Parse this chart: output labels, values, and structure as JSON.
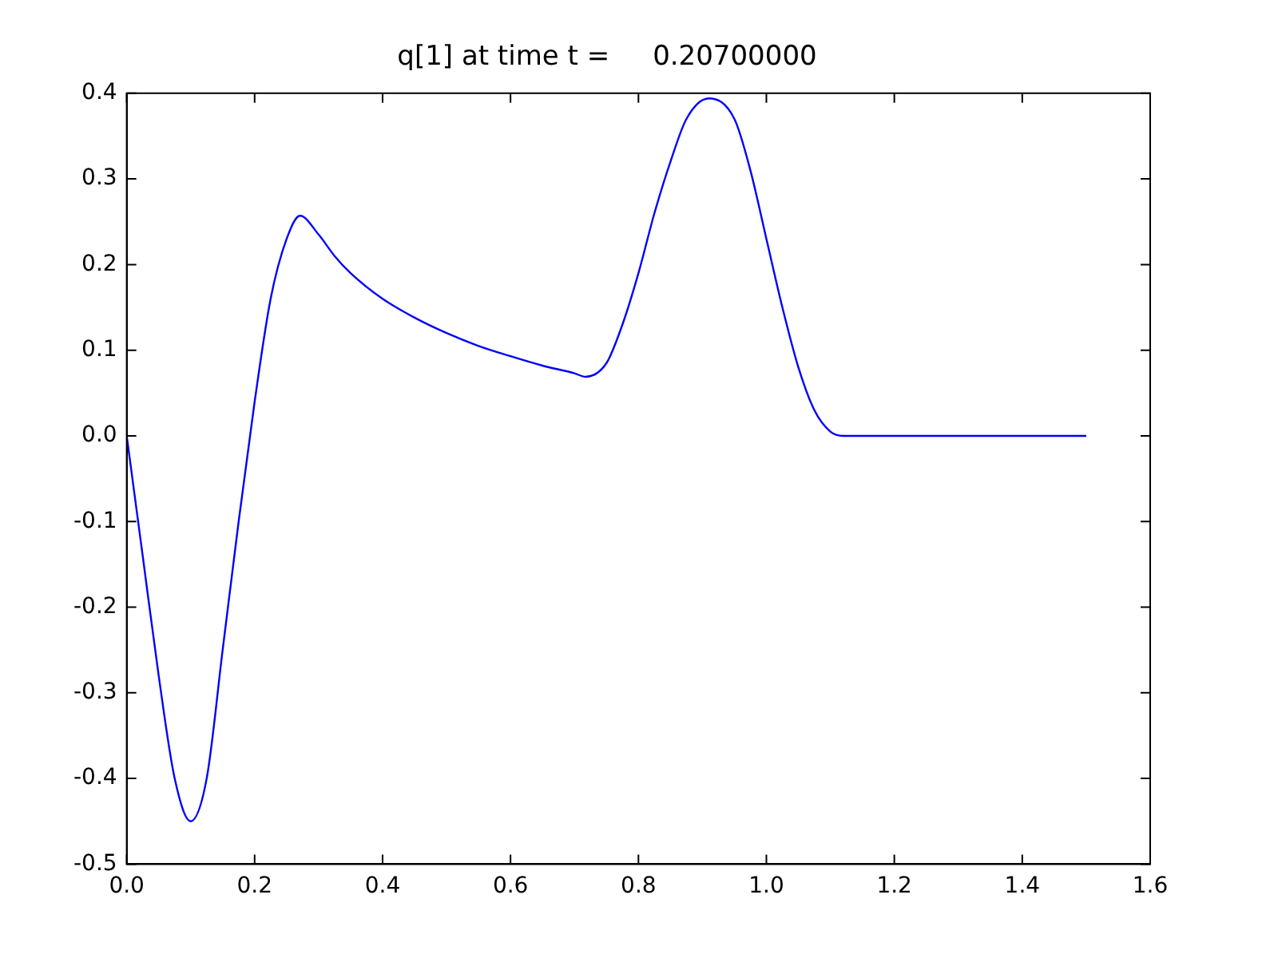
{
  "chart_data": {
    "type": "line",
    "title": "q[1] at time t =     0.20700000",
    "x": [
      0,
      0.025,
      0.05,
      0.075,
      0.1,
      0.125,
      0.15,
      0.175,
      0.2,
      0.225,
      0.25,
      0.271,
      0.3,
      0.325,
      0.35,
      0.4,
      0.45,
      0.5,
      0.55,
      0.6,
      0.65,
      0.7,
      0.717,
      0.75,
      0.775,
      0.8,
      0.825,
      0.85,
      0.875,
      0.91,
      0.95,
      0.975,
      1.0,
      1.025,
      1.05,
      1.075,
      1.1,
      1.12,
      1.3,
      1.5
    ],
    "series": [
      {
        "color": "#0000ff",
        "values": [
          0,
          -0.14,
          -0.28,
          -0.4,
          -0.45,
          -0.4,
          -0.25,
          -0.1,
          0.04,
          0.16,
          0.23,
          0.257,
          0.235,
          0.21,
          0.19,
          0.16,
          0.138,
          0.12,
          0.105,
          0.093,
          0.082,
          0.073,
          0.069,
          0.085,
          0.13,
          0.19,
          0.26,
          0.32,
          0.37,
          0.394,
          0.37,
          0.31,
          0.23,
          0.15,
          0.08,
          0.03,
          0.005,
          0,
          0,
          0
        ]
      }
    ],
    "xlim": [
      0,
      1.6
    ],
    "xticks": [
      {
        "value": 0,
        "label": "0.0"
      },
      0.2,
      0.4,
      0.6,
      0.8,
      {
        "value": 1,
        "label": "1.0"
      },
      1.2,
      1.4,
      1.6
    ],
    "ylim": [
      -0.5,
      0.4
    ],
    "yticks": [
      -0.5,
      -0.4,
      -0.3,
      -0.2,
      -0.1,
      {
        "value": 0,
        "label": "0.0"
      },
      0.1,
      0.2,
      0.3,
      0.4
    ],
    "grid": false,
    "legend": false,
    "marker": "none",
    "line_style": "solid"
  }
}
